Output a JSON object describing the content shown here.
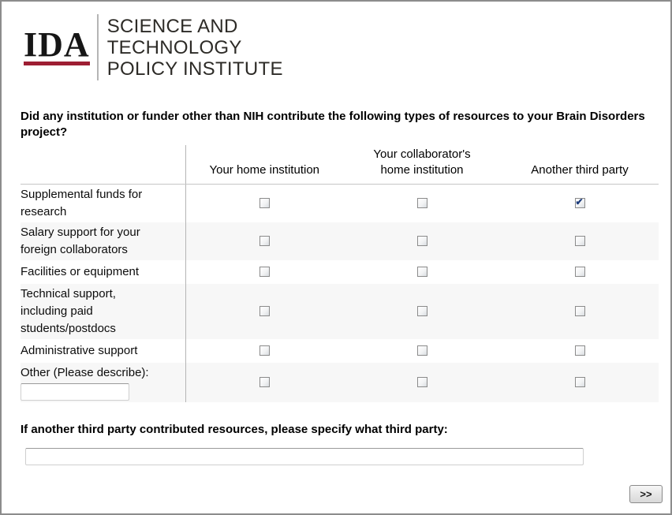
{
  "logo": {
    "acronym": "IDA",
    "institute_lines": [
      "SCIENCE AND",
      "TECHNOLOGY",
      "POLICY INSTITUTE"
    ],
    "accent_red": "#9e1e33"
  },
  "question": "Did any institution or funder other than NIH contribute the following types of resources to your Brain Disorders project?",
  "matrix": {
    "columns": [
      "Your home institution",
      "Your collaborator's home institution",
      "Another third party"
    ],
    "rows": [
      {
        "label": "Supplemental funds for research",
        "checks": [
          false,
          false,
          true
        ]
      },
      {
        "label": "Salary support for your foreign collaborators",
        "checks": [
          false,
          false,
          false
        ]
      },
      {
        "label": "Facilities or equipment",
        "checks": [
          false,
          false,
          false
        ]
      },
      {
        "label": "Technical support, including paid students/postdocs",
        "checks": [
          false,
          false,
          false
        ]
      },
      {
        "label": "Administrative support",
        "checks": [
          false,
          false,
          false
        ]
      },
      {
        "label": "Other (Please describe):",
        "checks": [
          false,
          false,
          false
        ],
        "input_value": ""
      }
    ]
  },
  "followup": {
    "question": "If another third party contributed resources, please specify what third party:",
    "input_value": ""
  },
  "next_button_label": ">>"
}
